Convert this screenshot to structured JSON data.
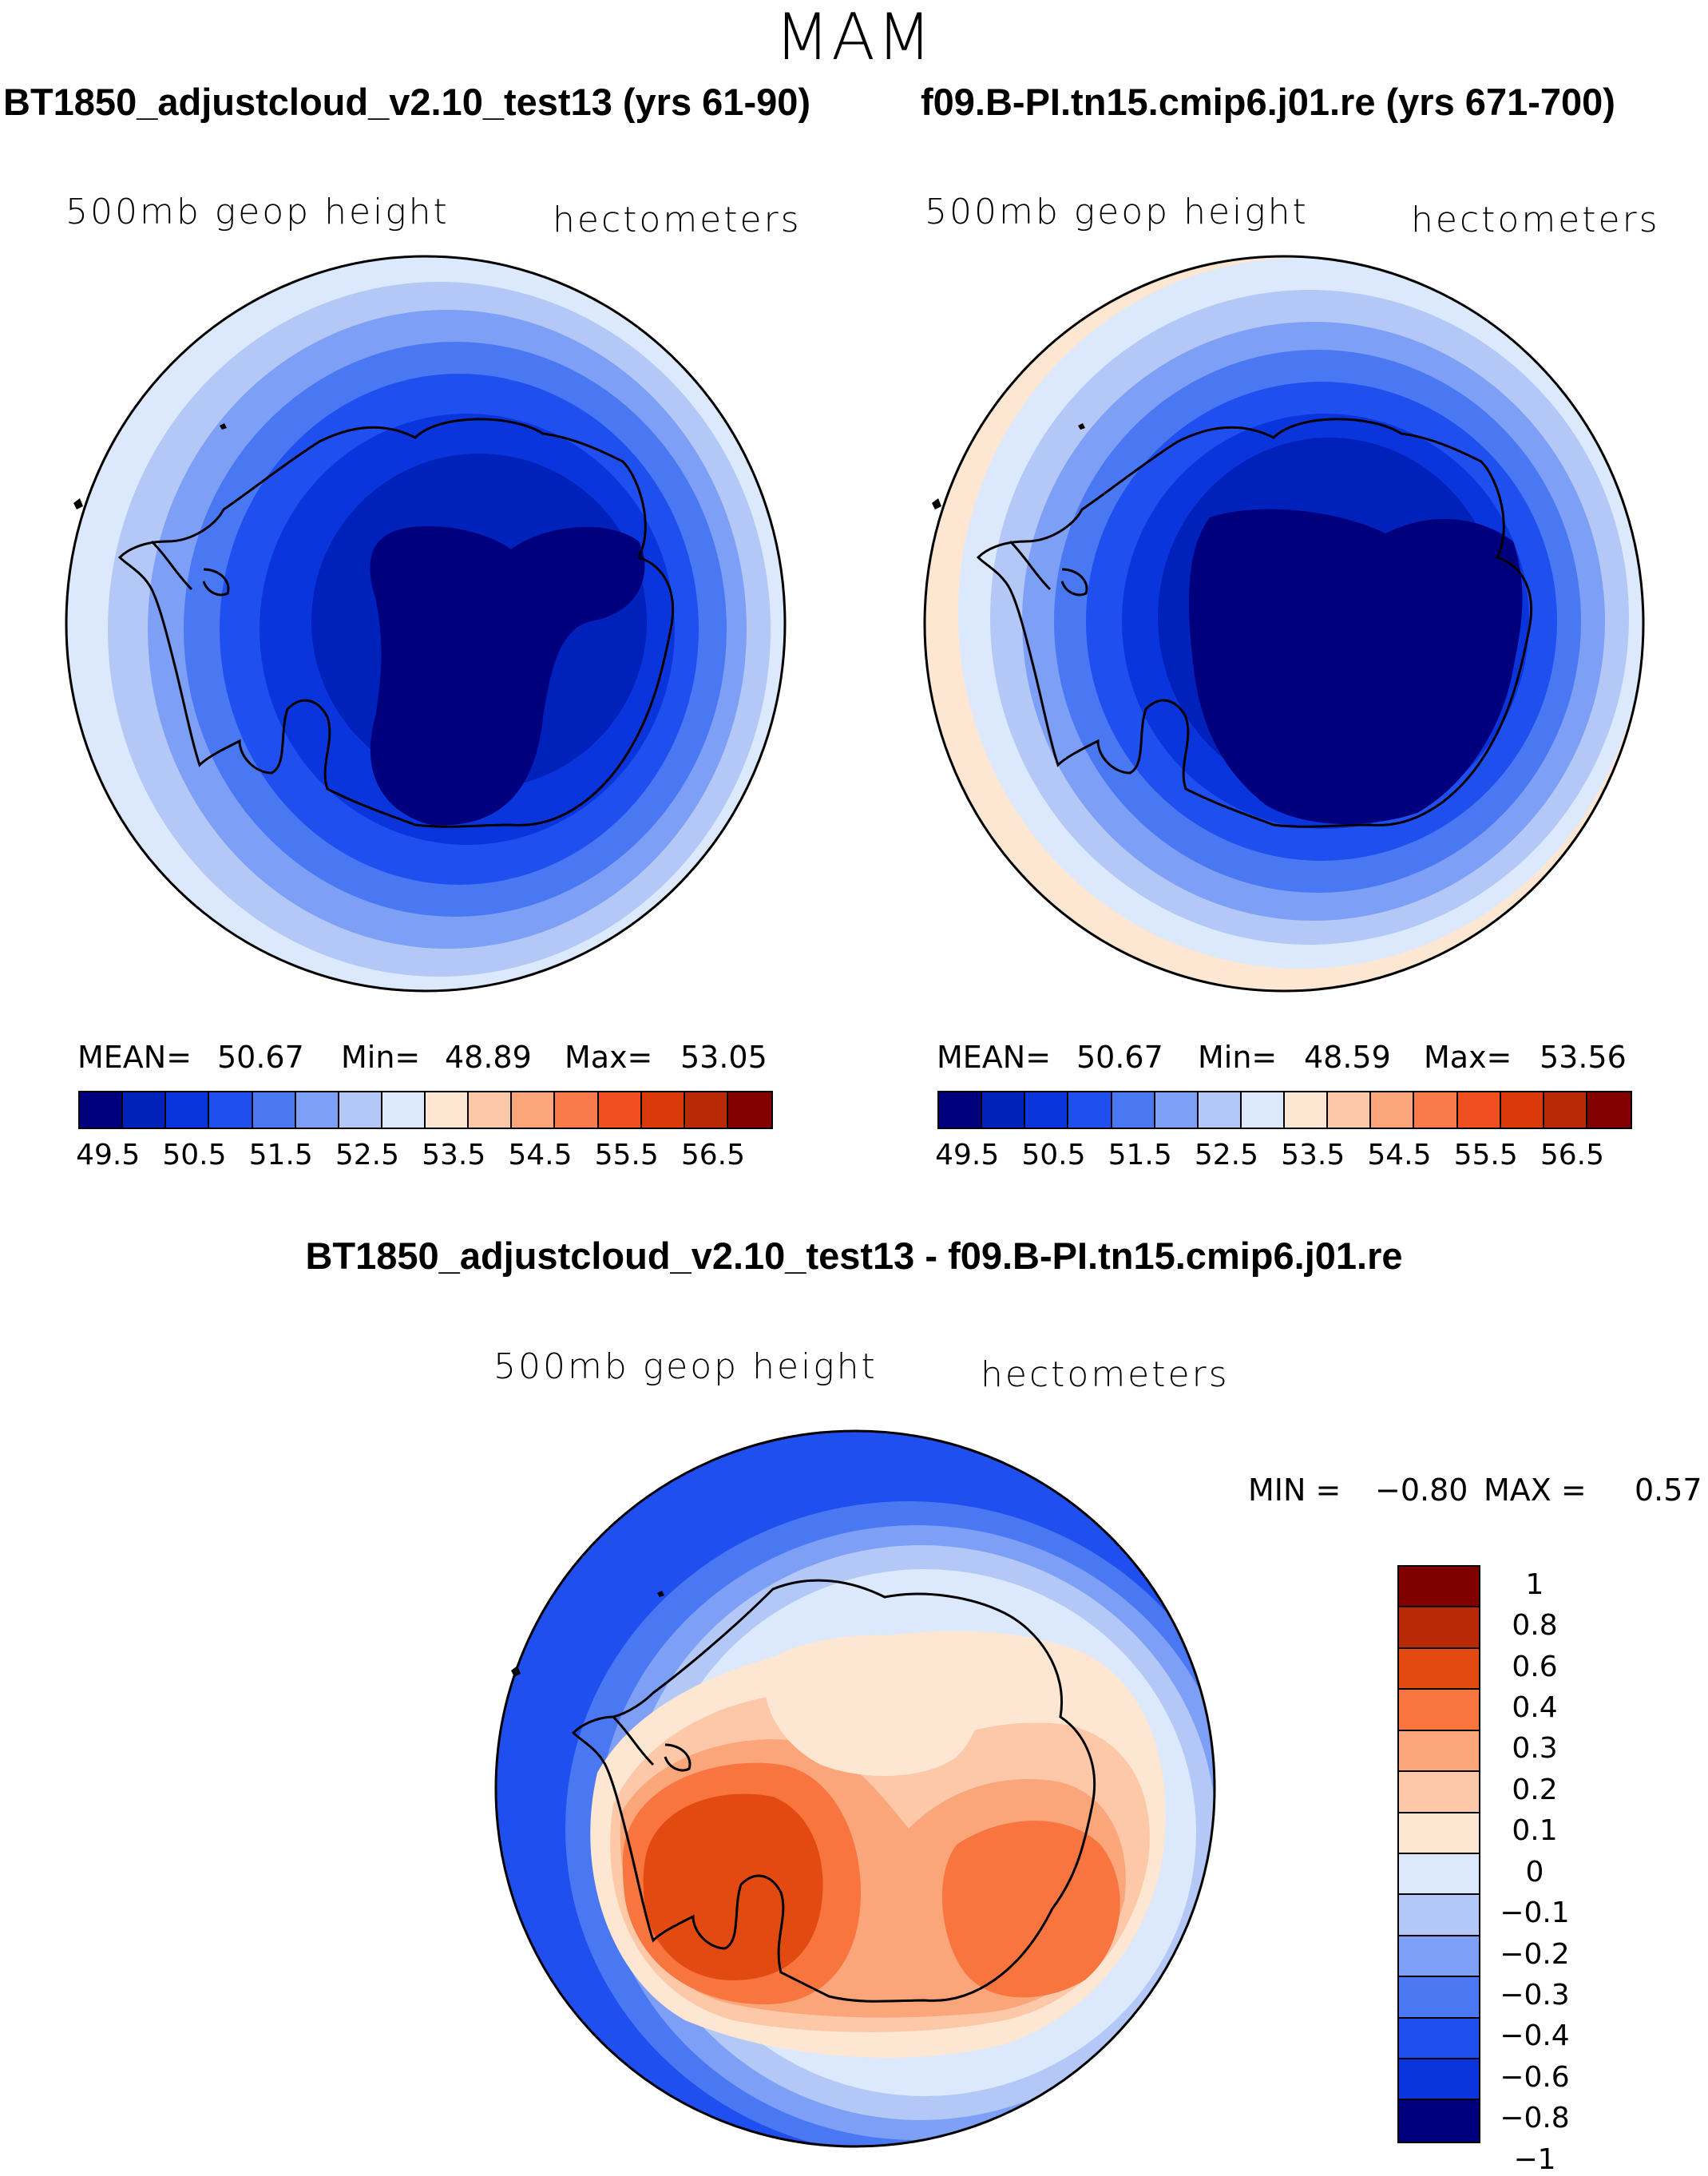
{
  "figure": {
    "season": "MAM",
    "variable": "500mb geop height",
    "units": "hectometers"
  },
  "panels": [
    {
      "title": "BT1850_adjustcloud_v2.10_test13 (yrs 61-90)",
      "variable": "500mb geop height",
      "units": "hectometers",
      "stats": {
        "mean_label": "MEAN=",
        "mean": "50.67",
        "min_label": "Min=",
        "min": "48.89",
        "max_label": "Max=",
        "max": "53.05"
      }
    },
    {
      "title": "f09.B-PI.tn15.cmip6.j01.re (yrs 671-700)",
      "variable": "500mb geop height",
      "units": "hectometers",
      "stats": {
        "mean_label": "MEAN=",
        "mean": "50.67",
        "min_label": "Min=",
        "min": "48.59",
        "max_label": "Max=",
        "max": "53.56"
      }
    },
    {
      "title": "BT1850_adjustcloud_v2.10_test13 - f09.B-PI.tn15.cmip6.j01.re",
      "variable": "500mb geop height",
      "units": "hectometers",
      "stats": {
        "min_label": "MIN =",
        "min": "−0.80",
        "max_label": "MAX =",
        "max": "0.57"
      }
    }
  ],
  "colorbars": {
    "absolute": {
      "colors": [
        "#00007f",
        "#0022bb",
        "#0a35dd",
        "#1f4fee",
        "#4a78f2",
        "#7d9ff5",
        "#b4c8f8",
        "#dce8fb",
        "#fde6d2",
        "#fcc8a8",
        "#fba57b",
        "#f97a4b",
        "#f0501f",
        "#da3a0a",
        "#b82a05",
        "#820000"
      ],
      "tick_labels": [
        "49.5",
        "50.5",
        "51.5",
        "52.5",
        "53.5",
        "54.5",
        "55.5",
        "56.5"
      ]
    },
    "difference": {
      "colors": [
        "#800000",
        "#b82a05",
        "#e24a12",
        "#f9753f",
        "#fba57b",
        "#fcc8a8",
        "#fde6d2",
        "#dce8fb",
        "#b4c8f8",
        "#7d9ff5",
        "#4a78f2",
        "#1f4fee",
        "#0a35dd",
        "#00007f"
      ],
      "tick_labels": [
        "1",
        "0.8",
        "0.6",
        "0.4",
        "0.3",
        "0.2",
        "0.1",
        "0",
        "−0.1",
        "−0.2",
        "−0.3",
        "−0.4",
        "−0.6",
        "−0.8",
        "−1"
      ]
    }
  }
}
